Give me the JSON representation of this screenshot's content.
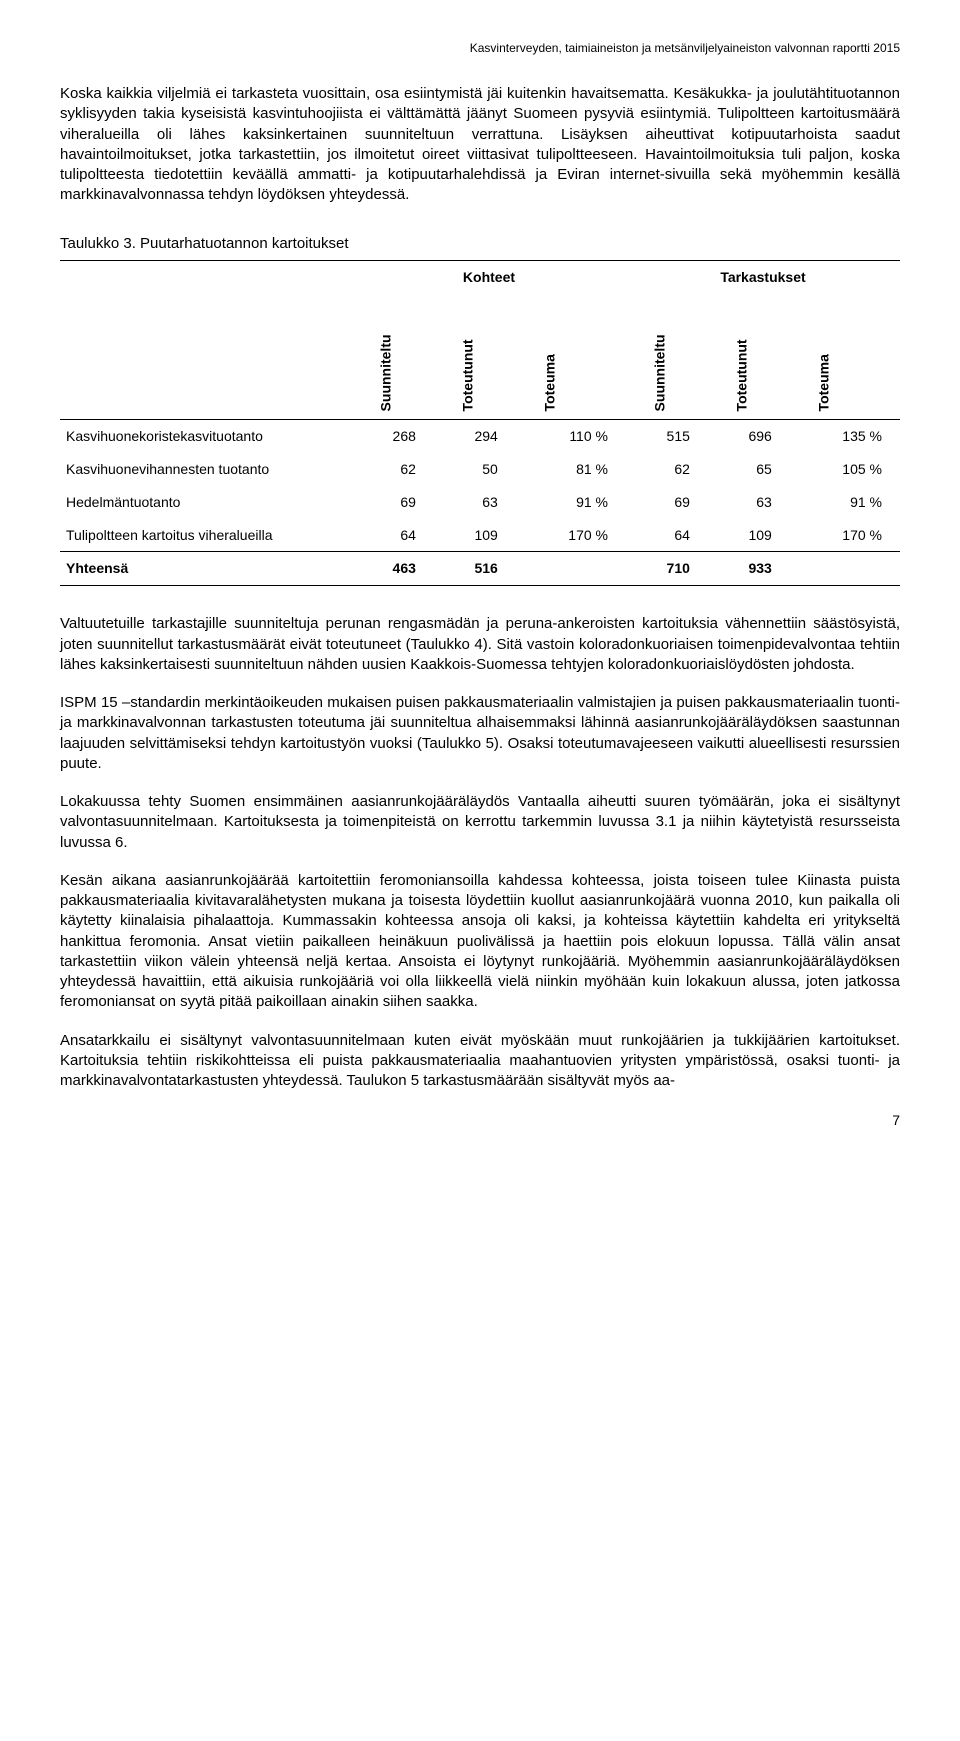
{
  "header": {
    "title": "Kasvinterveyden, taimiaineiston ja metsänviljelyaineiston valvonnan raportti 2015"
  },
  "paras": {
    "p1": "Koska kaikkia viljelmiä ei tarkasteta vuosittain, osa esiintymistä jäi kuitenkin havaitsematta. Kesäkukka- ja joulutähtituotannon syklisyyden takia kyseisistä kasvintuhoojiista ei välttämättä jäänyt Suomeen pysyviä esiintymiä. Tulipoltteen kartoitusmäärä viheralueilla oli lähes kaksinkertainen suunniteltuun verrattuna. Lisäyksen aiheuttivat kotipuutarhoista saadut havaintoilmoitukset, jotka tarkastettiin, jos ilmoitetut oireet viittasivat tulipoltteeseen. Havaintoilmoituksia tuli paljon, koska tulipoltteesta tiedotettiin keväällä ammatti- ja kotipuutarhalehdissä ja Eviran internet-sivuilla sekä myöhemmin kesällä markkinavalvonnassa tehdyn löydöksen yhteydessä.",
    "p2": "Valtuutetuille tarkastajille suunniteltuja perunan rengasmädän ja peruna-ankeroisten kartoituksia vähennettiin säästösyistä, joten suunnitellut tarkastusmäärät eivät toteutuneet (Taulukko 4). Sitä vastoin koloradonkuoriaisen toimenpidevalvontaa tehtiin lähes kaksinkertaisesti suunniteltuun nähden uusien Kaakkois-Suomessa tehtyjen koloradonkuoriaislöydösten johdosta.",
    "p3": "ISPM 15 –standardin merkintäoikeuden mukaisen puisen pakkausmateriaalin valmistajien ja puisen pakkausmateriaalin tuonti- ja markkinavalvonnan tarkastusten toteutuma jäi suunniteltua alhaisemmaksi lähinnä aasianrunkojääräläydöksen saastunnan laajuuden selvittämiseksi tehdyn kartoitustyön vuoksi (Taulukko 5). Osaksi toteutumavajeeseen vaikutti alueellisesti resurssien puute.",
    "p4": "Lokakuussa tehty Suomen ensimmäinen aasianrunkojääräläydös Vantaalla aiheutti suuren työmäärän, joka ei sisältynyt valvontasuunnitelmaan. Kartoituksesta ja toimenpiteistä on kerrottu tarkemmin luvussa 3.1 ja niihin käytetyistä resursseista luvussa 6.",
    "p5": "Kesän aikana aasianrunkojäärää kartoitettiin feromoniansoilla kahdessa kohteessa, joista toiseen tulee Kiinasta puista pakkausmateriaalia kivitavaralähetysten mukana ja toisesta löydettiin kuollut aasianrunkojäärä vuonna 2010, kun paikalla oli käytetty kiinalaisia pihalaattoja. Kummassakin kohteessa ansoja oli kaksi, ja kohteissa käytettiin kahdelta eri yritykseltä hankittua feromonia. Ansat vietiin paikalleen heinäkuun puolivälissä ja haettiin pois elokuun lopussa. Tällä välin ansat tarkastettiin viikon välein yhteensä neljä kertaa. Ansoista ei löytynyt runkojääriä. Myöhemmin aasianrunkojääräläydöksen yhteydessä havaittiin, että aikuisia runkojääriä voi olla liikkeellä vielä niinkin myöhään kuin lokakuun alussa, joten jatkossa feromoniansat on syytä pitää paikoillaan ainakin siihen saakka.",
    "p6": "Ansatarkkailu ei sisältynyt valvontasuunnitelmaan kuten eivät myöskään muut runkojäärien ja tukkijäärien kartoitukset. Kartoituksia tehtiin riskikohtteissa eli puista pakkausmateriaalia maahantuovien yritysten ympäristössä, osaksi tuonti- ja markkinavalvontatarkastusten yhteydessä. Taulukon 5 tarkastusmäärään sisältyvät myös aa-"
  },
  "table": {
    "caption": "Taulukko 3. Puutarhatuotannon kartoitukset",
    "group1": "Kohteet",
    "group2": "Tarkastukset",
    "cols": {
      "c1": "Suunniteltu",
      "c2": "Toteutunut",
      "c3": "Toteuma",
      "c4": "Suunniteltu",
      "c5": "Toteutunut",
      "c6": "Toteuma"
    },
    "rows": [
      {
        "label": "Kasvihuonekoristekasvituotanto",
        "v": [
          "268",
          "294",
          "110 %",
          "515",
          "696",
          "135 %"
        ]
      },
      {
        "label": "Kasvihuonevihannesten tuotanto",
        "v": [
          "62",
          "50",
          "81 %",
          "62",
          "65",
          "105 %"
        ]
      },
      {
        "label": "Hedelmäntuotanto",
        "v": [
          "69",
          "63",
          "91 %",
          "69",
          "63",
          "91 %"
        ]
      },
      {
        "label": "Tulipoltteen kartoitus viheralueilla",
        "v": [
          "64",
          "109",
          "170 %",
          "64",
          "109",
          "170 %"
        ]
      }
    ],
    "total": {
      "label": "Yhteensä",
      "v": [
        "463",
        "516",
        "",
        "710",
        "933",
        ""
      ]
    }
  },
  "pagenum": "7"
}
